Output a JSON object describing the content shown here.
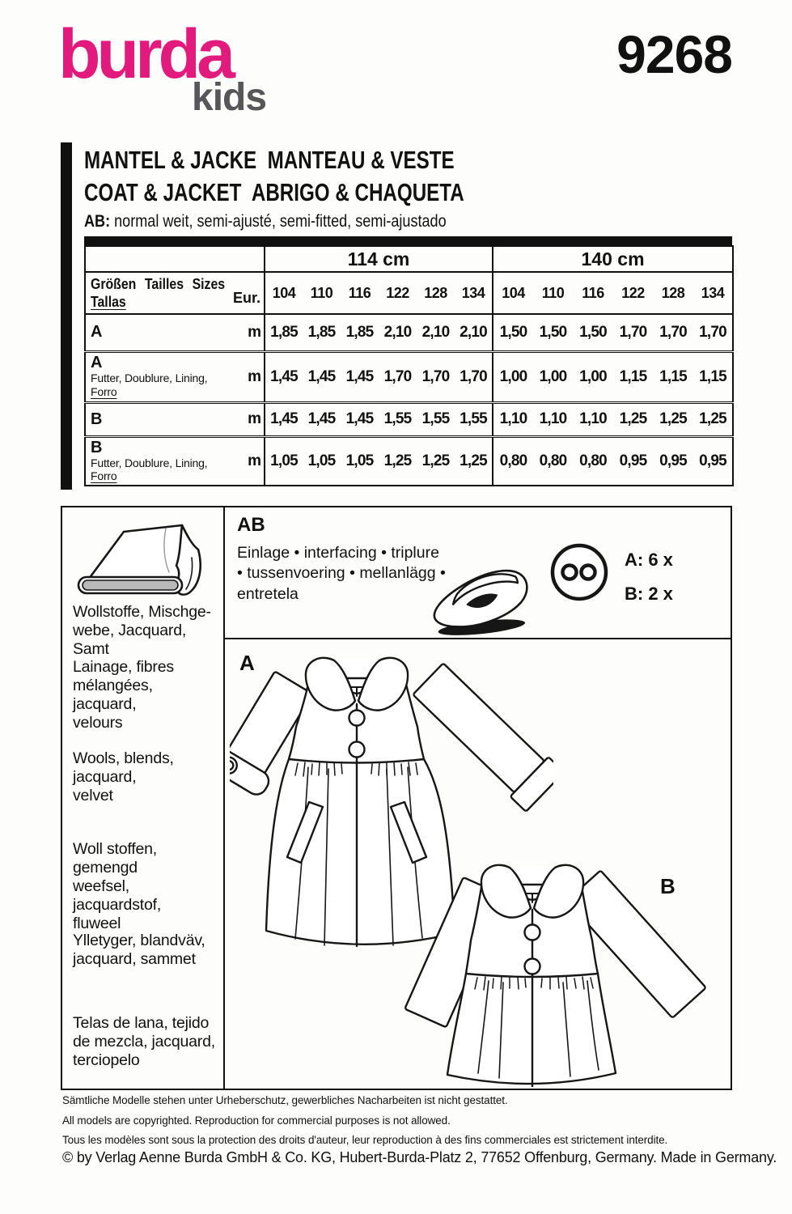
{
  "brand": {
    "logo_main": "burda",
    "logo_sub": "kids",
    "pattern_number": "9268",
    "logo_color": "#e31a7d",
    "logo_sub_color": "#57575a"
  },
  "title": {
    "line1": "MANTEL & JACKE  MANTEAU & VESTE",
    "line2": "COAT & JACKET  ABRIGO & CHAQUETA",
    "fit_prefix": "AB: ",
    "fit_text": "normal weit, semi-ajusté, semi-fitted, semi-ajustado"
  },
  "yardage_table": {
    "width_headers": [
      "114 cm",
      "140 cm"
    ],
    "size_label_row1": "Größen Tailles Sizes",
    "size_label_row2": "Tallas",
    "eur_label": "Eur.",
    "sizes": [
      "104",
      "110",
      "116",
      "122",
      "128",
      "134"
    ],
    "rows": [
      {
        "label": "A",
        "unit": "m",
        "values_114": [
          "1,85",
          "1,85",
          "1,85",
          "2,10",
          "2,10",
          "2,10"
        ],
        "values_140": [
          "1,50",
          "1,50",
          "1,50",
          "1,70",
          "1,70",
          "1,70"
        ]
      },
      {
        "label": "A",
        "sublabel": "Futter, Doublure, Lining,",
        "sublabel_underlined": "Forro",
        "unit": "m",
        "values_114": [
          "1,45",
          "1,45",
          "1,45",
          "1,70",
          "1,70",
          "1,70"
        ],
        "values_140": [
          "1,00",
          "1,00",
          "1,00",
          "1,15",
          "1,15",
          "1,15"
        ]
      },
      {
        "label": "B",
        "unit": "m",
        "values_114": [
          "1,45",
          "1,45",
          "1,45",
          "1,55",
          "1,55",
          "1,55"
        ],
        "values_140": [
          "1,10",
          "1,10",
          "1,10",
          "1,25",
          "1,25",
          "1,25"
        ]
      },
      {
        "label": "B",
        "sublabel": "Futter, Doublure, Lining,",
        "sublabel_underlined": "Forro",
        "unit": "m",
        "values_114": [
          "1,05",
          "1,05",
          "1,05",
          "1,25",
          "1,25",
          "1,25"
        ],
        "values_140": [
          "0,80",
          "0,80",
          "0,80",
          "0,95",
          "0,95",
          "0,95"
        ]
      }
    ]
  },
  "fabrics": {
    "items": [
      "Wollstoffe, Mischge-\nwebe, Jacquard, Samt",
      "Lainage, fibres\nmélangées, jacquard,\nvelours",
      "Wools, blends, jacquard,\nvelvet",
      "Woll stoffen, gemengd\nweefsel, jacquardstof,\nfluweel",
      "Ylletyger, blandväv,\njacquard, sammet",
      "Telas de lana, tejido\nde mezcla, jacquard,\nterciopelo"
    ]
  },
  "notions": {
    "group_label": "AB",
    "interfacing": "Einlage • interfacing • triplure • tussenvoering • mellanlägg • entretela",
    "buttons_a": "A: 6 x",
    "buttons_b": "B: 2 x"
  },
  "views": {
    "a": "A",
    "b": "B"
  },
  "footer": {
    "line1": "Sämtliche Modelle stehen unter Urheberschutz, gewerbliches Nacharbeiten ist nicht gestattet.",
    "line2": "All models are copyrighted. Reproduction for commercial purposes is not allowed.",
    "line3": "Tous les modèles sont sous la protection des droits d'auteur, leur reproduction à des fins commerciales est strictement interdite.",
    "line4": "© by Verlag Aenne Burda GmbH & Co. KG, Hubert-Burda-Platz 2, 77652 Offenburg, Germany. Made in Germany."
  }
}
